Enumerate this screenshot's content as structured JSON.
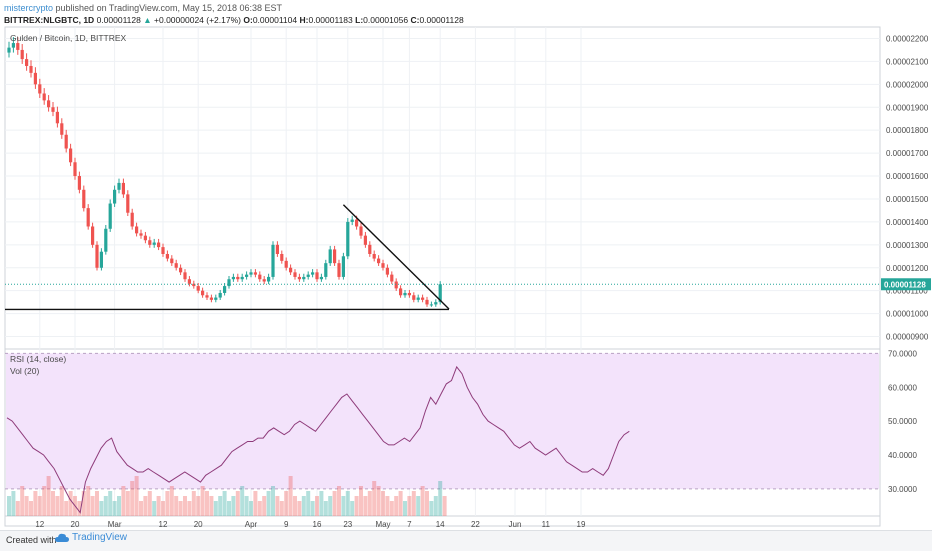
{
  "header": {
    "user": "mistercrypto",
    "published": "published on TradingView.com, May 15, 2018 06:38 EST",
    "symbol": "BITTREX:NLGBTC, 1D",
    "open_price": "0.00001128",
    "change": "+0.00000024 (+2.17%)",
    "o_label": "O:",
    "o_val": "0.00001104",
    "h_label": "H:",
    "h_val": "0.00001183",
    "l_label": "L:",
    "l_val": "0.00001056",
    "c_label": "C:",
    "c_val": "0.00001128"
  },
  "legend": {
    "main": "Gulden / Bitcoin, 1D, BITTREX",
    "rsi": "RSI (14, close)",
    "vol": "Vol (20)"
  },
  "footer": {
    "made_with": "Created with",
    "brand": "TradingView"
  },
  "colors": {
    "up": "#26a69a",
    "down": "#ef5350",
    "rsi_line": "#8e3b7a",
    "rsi_band": "#f3e3fb",
    "price_tag": "#26a69a"
  },
  "chart_data": [
    {
      "type": "candlestick",
      "title": "Gulden / Bitcoin, 1D, BITTREX",
      "ylim": [
        8.5e-06,
        2.25e-05
      ],
      "y_ticks": [
        "0.00002200",
        "0.00002100",
        "0.00002000",
        "0.00001900",
        "0.00001800",
        "0.00001700",
        "0.00001600",
        "0.00001500",
        "0.00001400",
        "0.00001300",
        "0.00001200",
        "0.00001100",
        "0.00001000",
        "0.00000900"
      ],
      "x_ticks": [
        "12",
        "20",
        "Mar",
        "12",
        "20",
        "Apr",
        "9",
        "16",
        "23",
        "May",
        "7",
        "14",
        "22",
        "Jun",
        "11",
        "19"
      ],
      "last_price": "0.00001128",
      "trend_lines": [
        {
          "name": "support",
          "points": [
            [
              "Feb 5",
              1.018e-05
            ],
            [
              "May 18",
              1.018e-05
            ]
          ]
        },
        {
          "name": "resistance",
          "points": [
            [
              "Apr 19",
              1.475e-05
            ],
            [
              "May 18",
              1.02e-05
            ]
          ]
        }
      ],
      "candles_approx": [
        2.16e-05,
        2.18e-05,
        2.15e-05,
        2.11e-05,
        2.08e-05,
        2.05e-05,
        2e-05,
        1.96e-05,
        1.93e-05,
        1.9e-05,
        1.88e-05,
        1.83e-05,
        1.78e-05,
        1.72e-05,
        1.66e-05,
        1.6e-05,
        1.54e-05,
        1.46e-05,
        1.38e-05,
        1.3e-05,
        1.2e-05,
        1.27e-05,
        1.37e-05,
        1.48e-05,
        1.54e-05,
        1.57e-05,
        1.52e-05,
        1.44e-05,
        1.38e-05,
        1.35e-05,
        1.34e-05,
        1.32e-05,
        1.3e-05,
        1.31e-05,
        1.29e-05,
        1.26e-05,
        1.24e-05,
        1.22e-05,
        1.2e-05,
        1.18e-05,
        1.15e-05,
        1.13e-05,
        1.12e-05,
        1.1e-05,
        1.08e-05,
        1.07e-05,
        1.06e-05,
        1.07e-05,
        1.09e-05,
        1.12e-05,
        1.15e-05,
        1.16e-05,
        1.15e-05,
        1.16e-05,
        1.17e-05,
        1.18e-05,
        1.17e-05,
        1.15e-05,
        1.14e-05,
        1.16e-05,
        1.3e-05,
        1.26e-05,
        1.23e-05,
        1.2e-05,
        1.18e-05,
        1.16e-05,
        1.15e-05,
        1.16e-05,
        1.17e-05,
        1.18e-05,
        1.15e-05,
        1.16e-05,
        1.22e-05,
        1.28e-05,
        1.22e-05,
        1.16e-05,
        1.25e-05,
        1.4e-05,
        1.41e-05,
        1.38e-05,
        1.34e-05,
        1.3e-05,
        1.26e-05,
        1.24e-05,
        1.22e-05,
        1.2e-05,
        1.17e-05,
        1.14e-05,
        1.11e-05,
        1.08e-05,
        1.09e-05,
        1.08e-05,
        1.06e-05,
        1.07e-05,
        1.06e-05,
        1.04e-05,
        1.04e-05,
        1.05e-05,
        1.128e-05
      ]
    },
    {
      "type": "line",
      "title": "RSI (14, close)",
      "ylim": [
        22,
        71
      ],
      "y_ticks": [
        "70.0000",
        "60.0000",
        "50.0000",
        "40.0000",
        "30.0000"
      ],
      "band": [
        30,
        70
      ],
      "values": [
        51,
        50,
        48,
        46,
        44,
        42,
        41,
        40,
        38,
        36,
        33,
        30,
        27,
        25,
        23,
        32,
        36,
        39,
        42,
        44,
        45,
        41,
        39,
        37,
        36,
        35,
        35,
        36,
        35,
        34,
        33,
        32,
        33,
        34,
        35,
        34,
        33,
        32,
        34,
        35,
        36,
        37,
        39,
        41,
        42,
        43,
        44,
        44,
        45,
        45,
        47,
        48,
        47,
        46,
        47,
        49,
        50,
        49,
        48,
        47,
        49,
        51,
        53,
        55,
        57,
        58,
        56,
        54,
        52,
        50,
        48,
        46,
        44,
        43,
        43,
        44,
        45,
        44,
        46,
        48,
        53,
        57,
        55,
        58,
        61,
        62,
        66,
        64,
        60,
        57,
        55,
        52,
        50,
        49,
        48,
        47,
        45,
        43,
        42,
        43,
        44,
        42,
        41,
        40,
        41,
        42,
        40,
        38,
        37,
        36,
        35,
        35,
        36,
        35,
        34,
        36,
        40,
        44,
        46,
        47
      ]
    },
    {
      "type": "bar",
      "title": "Vol (20)",
      "values": [
        4,
        5,
        3,
        6,
        4,
        3,
        5,
        4,
        6,
        8,
        5,
        4,
        6,
        3,
        5,
        4,
        3,
        5,
        6,
        4,
        5,
        3,
        4,
        5,
        3,
        4,
        6,
        5,
        7,
        8,
        3,
        4,
        5,
        3,
        4,
        3,
        5,
        6,
        4,
        3,
        4,
        3,
        5,
        4,
        6,
        5,
        4,
        3,
        4,
        5,
        3,
        4,
        5,
        6,
        4,
        3,
        5,
        3,
        4,
        5,
        6,
        4,
        3,
        5,
        8,
        4,
        3,
        4,
        5,
        3,
        4,
        5,
        3,
        4,
        5,
        6,
        4,
        5,
        3,
        4,
        6,
        4,
        5,
        7,
        6,
        5,
        4,
        3,
        4,
        5,
        3,
        4,
        5,
        4,
        6,
        5,
        3,
        4,
        7,
        4
      ]
    }
  ]
}
